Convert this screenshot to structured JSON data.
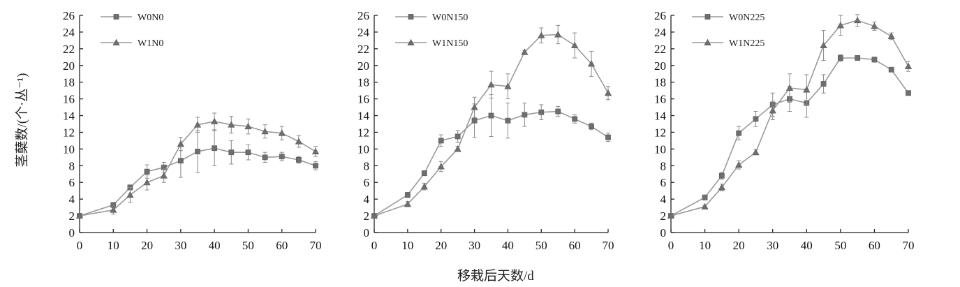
{
  "figure": {
    "ylabel": "茎蘖数/(个·丛⁻¹)",
    "xlabel": "移栽后天数/d"
  },
  "chart_data": [
    {
      "type": "line",
      "title": "",
      "xlim": [
        0,
        70
      ],
      "ylim": [
        0,
        26
      ],
      "xticks": [
        0,
        10,
        20,
        30,
        40,
        50,
        60,
        70
      ],
      "yticks": [
        0,
        2,
        4,
        6,
        8,
        10,
        12,
        14,
        16,
        18,
        20,
        22,
        24,
        26
      ],
      "legend": "top-left",
      "series": [
        {
          "name": "W0N0",
          "marker": "square",
          "x": [
            0,
            10,
            15,
            20,
            25,
            30,
            35,
            40,
            45,
            50,
            55,
            60,
            65,
            70
          ],
          "y": [
            2.0,
            3.3,
            5.4,
            7.3,
            7.8,
            8.6,
            9.7,
            10.1,
            9.6,
            9.6,
            9.0,
            9.1,
            8.7,
            8.0
          ],
          "err": [
            0.1,
            0.3,
            0.3,
            0.8,
            0.6,
            2.0,
            2.5,
            2.1,
            1.4,
            0.9,
            0.6,
            0.5,
            0.4,
            0.5
          ]
        },
        {
          "name": "W1N0",
          "marker": "triangle",
          "x": [
            0,
            10,
            15,
            20,
            25,
            30,
            35,
            40,
            45,
            50,
            55,
            60,
            65,
            70
          ],
          "y": [
            2.0,
            2.7,
            4.5,
            6.0,
            6.8,
            10.6,
            12.9,
            13.3,
            12.9,
            12.7,
            12.1,
            11.9,
            10.9,
            9.7
          ],
          "err": [
            0.1,
            0.5,
            0.9,
            0.9,
            0.8,
            0.8,
            0.9,
            1.0,
            1.0,
            0.9,
            0.8,
            0.8,
            0.7,
            0.6
          ]
        }
      ]
    },
    {
      "type": "line",
      "title": "",
      "xlim": [
        0,
        70
      ],
      "ylim": [
        0,
        26
      ],
      "xticks": [
        0,
        10,
        20,
        30,
        40,
        50,
        60,
        70
      ],
      "yticks": [
        0,
        2,
        4,
        6,
        8,
        10,
        12,
        14,
        16,
        18,
        20,
        22,
        24,
        26
      ],
      "legend": "top-left",
      "series": [
        {
          "name": "W0N150",
          "marker": "square",
          "x": [
            0,
            10,
            15,
            20,
            25,
            30,
            35,
            40,
            45,
            50,
            55,
            60,
            65,
            70
          ],
          "y": [
            2.0,
            4.5,
            7.1,
            11.0,
            11.5,
            13.4,
            14.0,
            13.4,
            14.1,
            14.4,
            14.5,
            13.6,
            12.7,
            11.4
          ],
          "err": [
            0.1,
            0.3,
            0.3,
            0.7,
            0.7,
            2.0,
            2.5,
            2.1,
            1.4,
            0.9,
            0.6,
            0.5,
            0.4,
            0.5
          ]
        },
        {
          "name": "W1N150",
          "marker": "triangle",
          "x": [
            0,
            10,
            15,
            20,
            25,
            30,
            35,
            40,
            45,
            50,
            55,
            60,
            65,
            70
          ],
          "y": [
            2.0,
            3.4,
            5.5,
            7.9,
            10.0,
            15.0,
            17.7,
            17.5,
            21.6,
            23.6,
            23.7,
            22.4,
            20.2,
            16.7
          ],
          "err": [
            0.1,
            0.3,
            0.4,
            0.6,
            0.3,
            1.2,
            1.6,
            1.5,
            0.2,
            0.9,
            1.1,
            1.5,
            1.5,
            0.8
          ]
        }
      ]
    },
    {
      "type": "line",
      "title": "",
      "xlim": [
        0,
        70
      ],
      "ylim": [
        0,
        26
      ],
      "xticks": [
        0,
        10,
        20,
        30,
        40,
        50,
        60,
        70
      ],
      "yticks": [
        0,
        2,
        4,
        6,
        8,
        10,
        12,
        14,
        16,
        18,
        20,
        22,
        24,
        26
      ],
      "legend": "top-left",
      "series": [
        {
          "name": "W0N225",
          "marker": "square",
          "x": [
            0,
            10,
            15,
            20,
            25,
            30,
            35,
            40,
            45,
            50,
            55,
            60,
            65,
            70
          ],
          "y": [
            2.0,
            4.2,
            6.8,
            11.9,
            13.6,
            15.3,
            16.0,
            15.5,
            17.8,
            20.9,
            20.9,
            20.7,
            19.5,
            16.7
          ],
          "err": [
            0.1,
            0.3,
            0.4,
            0.8,
            0.9,
            1.4,
            1.5,
            1.7,
            1.1,
            0.4,
            0.2,
            0.3,
            0.2,
            0.2
          ]
        },
        {
          "name": "W1N225",
          "marker": "triangle",
          "x": [
            0,
            10,
            15,
            20,
            25,
            30,
            35,
            40,
            45,
            50,
            55,
            60,
            65,
            70
          ],
          "y": [
            2.0,
            3.1,
            5.4,
            8.1,
            9.6,
            14.6,
            17.3,
            17.1,
            22.4,
            24.8,
            25.4,
            24.7,
            23.5,
            19.9
          ],
          "err": [
            0.1,
            0.2,
            0.4,
            0.5,
            0.3,
            1.1,
            1.7,
            1.8,
            1.8,
            1.2,
            0.7,
            0.5,
            0.4,
            0.6
          ]
        }
      ]
    }
  ]
}
